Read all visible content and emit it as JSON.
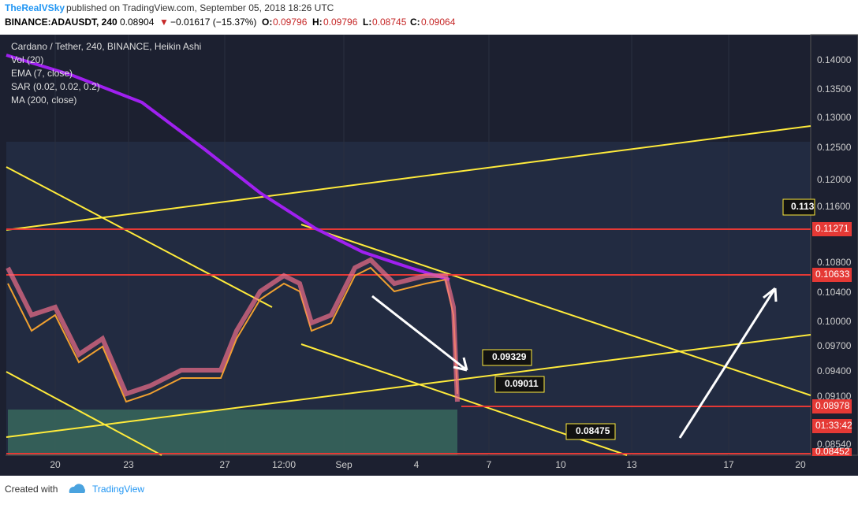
{
  "header": {
    "author": "TheRealVSky",
    "published": " published on TradingView.com, September 05, 2018 18:26 UTC",
    "symbol": "BINANCE:ADAUSDT, 240",
    "last": "0.08904",
    "arrow": "▼",
    "change": "−0.01617 (−15.37%)",
    "o_label": "O:",
    "o": "0.09796",
    "h_label": "H:",
    "h": "0.09796",
    "l_label": "L:",
    "l": "0.08745",
    "c_label": "C:",
    "c": "0.09064"
  },
  "legend": [
    "Cardano / Tether, 240, BINANCE, Heikin Ashi",
    "Vol (20)",
    "EMA (7, close)",
    "SAR (0.02, 0.02, 0.2)",
    "MA (200, close)"
  ],
  "price_axis": [
    "0.14000",
    "0.13500",
    "0.13000",
    "0.12500",
    "0.12000",
    "0.11600",
    "0.10800",
    "0.10400",
    "0.10000",
    "0.09700",
    "0.09400",
    "0.09100",
    "0.08540"
  ],
  "price_tags": [
    "0.11271",
    "0.10633",
    "0.08978",
    "01:33:42",
    "0.08452"
  ],
  "time_axis": [
    "20",
    "23",
    "27",
    "12:00",
    "Sep",
    "4",
    "7",
    "10",
    "13",
    "17",
    "20"
  ],
  "annotations": [
    "0.09329",
    "0.09011",
    "0.08475",
    "0.113"
  ],
  "footer": {
    "created": "Created with",
    "brand": "TradingView"
  }
}
